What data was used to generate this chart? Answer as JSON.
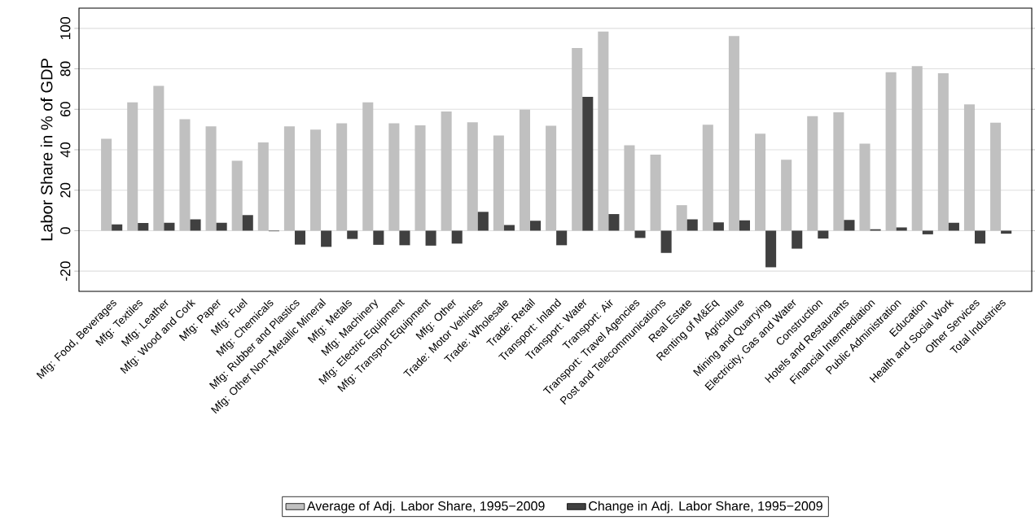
{
  "chart_data": {
    "type": "bar",
    "ylabel": "Labor Share in % of GDP",
    "categories": [
      "Mfg: Food, Beverages",
      "Mfg: Textiles",
      "Mfg: Leather",
      "Mfg: Wood and Cork",
      "Mfg: Paper",
      "Mfg: Fuel",
      "Mfg: Chemicals",
      "Mfg: Rubber and Plastics",
      "Mfg: Other Non−Metallic Mineral",
      "Mfg: Metals",
      "Mfg: Machinery",
      "Mfg: Electric Equipment",
      "Mfg: Transport Equipment",
      "Mfg: Other",
      "Trade: Motor Vehicles",
      "Trade: Wholesale",
      "Trade: Retail",
      "Transport: Inland",
      "Transport: Water",
      "Transport: Air",
      "Transport: Travel Agencies",
      "Post and Telecommunications",
      "Real Estate",
      "Renting of M&Eq",
      "Agriculture",
      "Mining and Quarrying",
      "Electricity, Gas and Water",
      "Construction",
      "Hotels and Restaurants",
      "Financial Intermediation",
      "Public Administration",
      "Education",
      "Health and Social Work",
      "Other Services",
      "Total Industries"
    ],
    "series": [
      {
        "name": "Average of Adj. Labor Share, 1995−2009",
        "color": "#c0c0c0",
        "values": [
          45.4,
          63.4,
          71.6,
          55.1,
          51.6,
          34.6,
          43.6,
          51.6,
          50.0,
          53.1,
          63.4,
          53.1,
          52.1,
          58.9,
          53.6,
          47.0,
          59.8,
          51.9,
          90.3,
          98.4,
          42.2,
          37.6,
          12.6,
          52.4,
          96.2,
          47.9,
          35.1,
          56.6,
          58.5,
          43.0,
          78.3,
          81.3,
          77.8,
          62.4,
          53.4
        ]
      },
      {
        "name": "Change in Adj. Labor Share, 1995−2009",
        "color": "#404040",
        "values": [
          3.1,
          3.8,
          3.9,
          5.6,
          3.9,
          7.7,
          -0.3,
          -6.9,
          -8.0,
          -4.1,
          -7.0,
          -7.2,
          -7.4,
          -6.4,
          9.3,
          2.8,
          4.9,
          -7.2,
          66.2,
          8.2,
          -3.6,
          -11.0,
          5.6,
          4.1,
          5.1,
          -18.1,
          -8.9,
          -3.9,
          5.3,
          0.7,
          1.6,
          -1.8,
          3.9,
          -6.4,
          -1.5
        ]
      }
    ],
    "ylim": [
      -30,
      110
    ],
    "yticks": [
      -20,
      0,
      20,
      40,
      60,
      80,
      100
    ],
    "grid": "y",
    "legend": "bottom"
  }
}
